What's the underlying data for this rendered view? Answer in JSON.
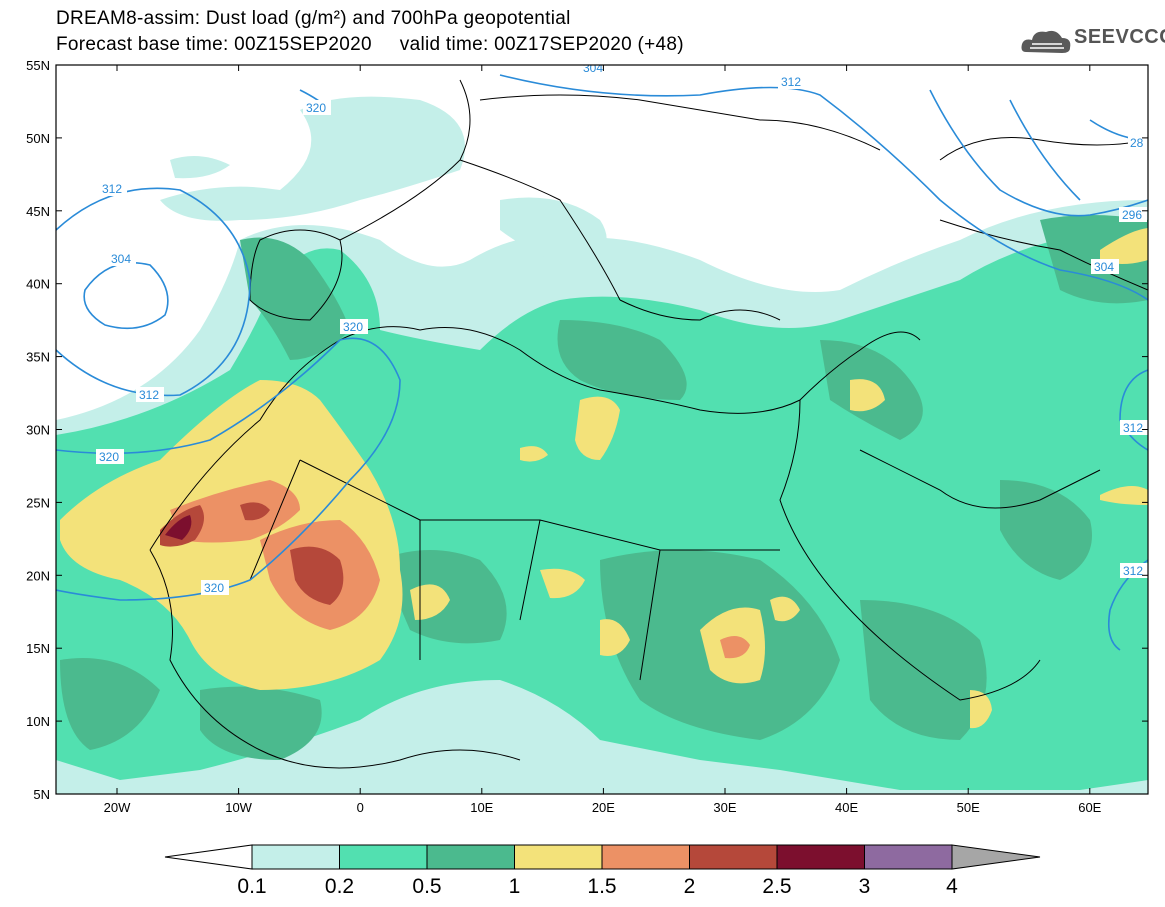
{
  "header": {
    "title_line1": "DREAM8-assim: Dust load (g/m²) and 700hPa geopotential",
    "title_line2": "Forecast base time: 00Z15SEP2020     valid time: 00Z17SEP2020 (+48)",
    "logo_text": "SEEVCCC",
    "logo_icon": "cloud-icon"
  },
  "map": {
    "lat_labels": [
      "55N",
      "50N",
      "45N",
      "40N",
      "35N",
      "30N",
      "25N",
      "20N",
      "15N",
      "10N",
      "5N"
    ],
    "lon_labels": [
      "20W",
      "10W",
      "0",
      "10E",
      "20E",
      "30E",
      "40E",
      "50E",
      "60E"
    ],
    "contour_labels": [
      "312",
      "304",
      "312",
      "320",
      "320",
      "320",
      "312",
      "304",
      "296",
      "304",
      "312",
      "312",
      "320",
      "28"
    ]
  },
  "colorbar": {
    "labels": [
      "0.1",
      "0.2",
      "0.5",
      "1",
      "1.5",
      "2",
      "2.5",
      "3",
      "4"
    ],
    "colors": [
      "#ffffff",
      "#c4efe9",
      "#52e0b0",
      "#4bba8e",
      "#f3e27a",
      "#ec9165",
      "#b5483a",
      "#7c0f2e",
      "#8e6aa0",
      "#a6a6a6"
    ]
  },
  "colors": {
    "contour": "#2a8bd8",
    "border": "#000000",
    "ocean": "#ffffff"
  }
}
